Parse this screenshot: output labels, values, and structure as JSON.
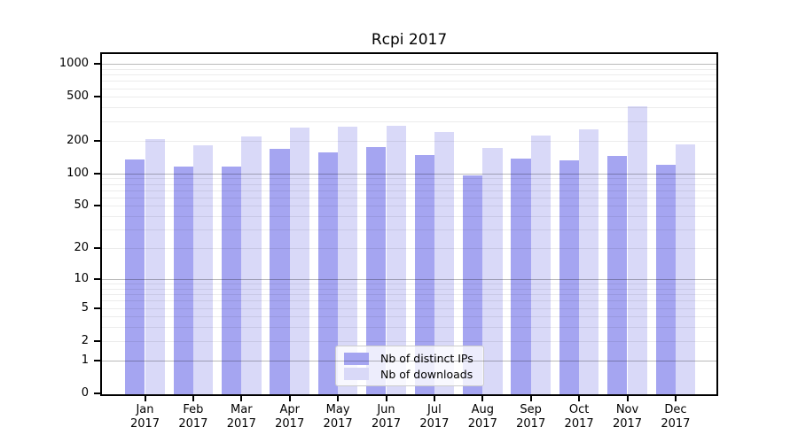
{
  "chart_data": {
    "type": "bar",
    "title": "Rcpi 2017",
    "x_categories": [
      {
        "line1": "Jan",
        "line2": "2017"
      },
      {
        "line1": "Feb",
        "line2": "2017"
      },
      {
        "line1": "Mar",
        "line2": "2017"
      },
      {
        "line1": "Apr",
        "line2": "2017"
      },
      {
        "line1": "May",
        "line2": "2017"
      },
      {
        "line1": "Jun",
        "line2": "2017"
      },
      {
        "line1": "Jul",
        "line2": "2017"
      },
      {
        "line1": "Aug",
        "line2": "2017"
      },
      {
        "line1": "Sep",
        "line2": "2017"
      },
      {
        "line1": "Oct",
        "line2": "2017"
      },
      {
        "line1": "Nov",
        "line2": "2017"
      },
      {
        "line1": "Dec",
        "line2": "2017"
      }
    ],
    "series": [
      {
        "name": "Nb of distinct IPs",
        "color": "#a5a5f1",
        "values": [
          134,
          115,
          116,
          169,
          155,
          175,
          147,
          95,
          137,
          132,
          145,
          120
        ]
      },
      {
        "name": "Nb of downloads",
        "color": "#d9d9f8",
        "values": [
          207,
          181,
          217,
          263,
          270,
          273,
          238,
          170,
          223,
          253,
          411,
          183
        ]
      }
    ],
    "y_axis": {
      "scale": "log1p",
      "ticks": [
        0,
        1,
        2,
        5,
        10,
        20,
        50,
        100,
        200,
        500,
        1000
      ],
      "limit": [
        0,
        1000
      ],
      "major_grid_at": [
        1,
        10,
        100,
        1000
      ],
      "minor_grid_decades": [
        1,
        10,
        100
      ]
    },
    "grid": "on",
    "legend_position": "lower center"
  }
}
